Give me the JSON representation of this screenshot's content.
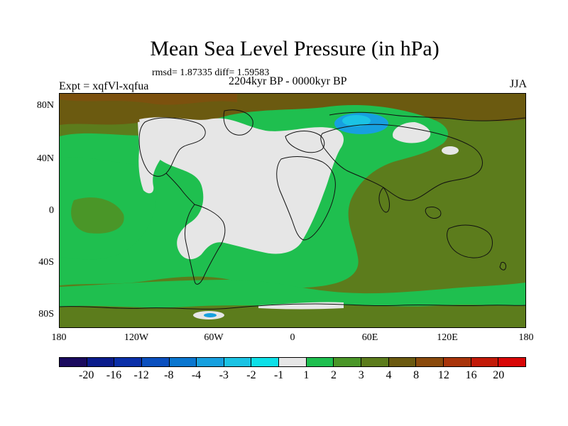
{
  "title": "Mean Sea Level Pressure (in hPa)",
  "stats": "rmsd= 1.87335 diff= 1.59583",
  "period": "2204kyr BP - 0000kyr BP",
  "experiment": "Expt = xqfVl-xqfua",
  "season": "JJA",
  "lat_labels": [
    "80N",
    "40N",
    "0",
    "40S",
    "80S"
  ],
  "lon_labels": [
    "180",
    "120W",
    "60W",
    "0",
    "60E",
    "120E",
    "180"
  ],
  "colorbar": {
    "labels": [
      "-20",
      "-16",
      "-12",
      "-8",
      "-4",
      "-3",
      "-2",
      "-1",
      "1",
      "2",
      "3",
      "4",
      "8",
      "12",
      "16",
      "20"
    ],
    "colors": [
      "#1a0a5e",
      "#0b1c8c",
      "#0a2fa8",
      "#0a4fbe",
      "#0a76cf",
      "#17a0df",
      "#1bc3e4",
      "#0ee0e8",
      "#e6e6e6",
      "#1fbf4f",
      "#4a9628",
      "#5c7c1c",
      "#6b5a10",
      "#8a4a0c",
      "#a8340a",
      "#c21a08",
      "#d80606"
    ]
  }
}
